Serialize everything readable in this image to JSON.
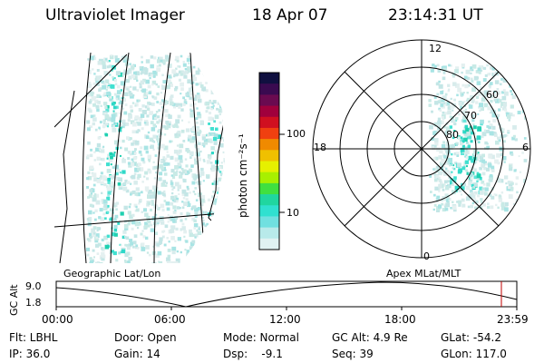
{
  "header": {
    "instrument": "Ultraviolet Imager",
    "date": "18 Apr 07",
    "time": "23:14:31 UT"
  },
  "colorbar": {
    "unit_label": "photon cm⁻²s⁻¹",
    "ticks": [
      "100",
      "10"
    ],
    "colors": [
      "#101040",
      "#3a0a50",
      "#6a0a50",
      "#a0003c",
      "#d01020",
      "#f04010",
      "#f08a00",
      "#f0c000",
      "#e6f000",
      "#a8f000",
      "#40e040",
      "#20d6a0",
      "#30e0d0",
      "#70e0e0",
      "#b8eaea",
      "#e0f2f2"
    ]
  },
  "geo_panel": {
    "label": "Geographic Lat/Lon"
  },
  "polar_panel": {
    "label": "Apex MLat/MLT",
    "mlt_labels": {
      "top": "12",
      "left": "18",
      "right": "6",
      "bottom": "0"
    },
    "lat_labels": [
      "60",
      "70",
      "80"
    ]
  },
  "altitude_plot": {
    "ylabel": "GC Alt",
    "yticks": [
      "9.0",
      "1.8"
    ],
    "xticks": [
      "00:00",
      "06:00",
      "12:00",
      "18:00",
      "23:59"
    ],
    "marker_color": "#c00000"
  },
  "status": {
    "flt": "Flt: LBHL",
    "ip": "IP: 36.0",
    "door": "Door: Open",
    "gain": "Gain: 14",
    "mode": "Mode: Normal",
    "dsp": "Dsp:    -9.1",
    "gc_alt": "GC Alt: 4.9 Re",
    "seq": "Seq: 39",
    "glat": "GLat: -54.2",
    "glon": "GLon: 117.0"
  }
}
